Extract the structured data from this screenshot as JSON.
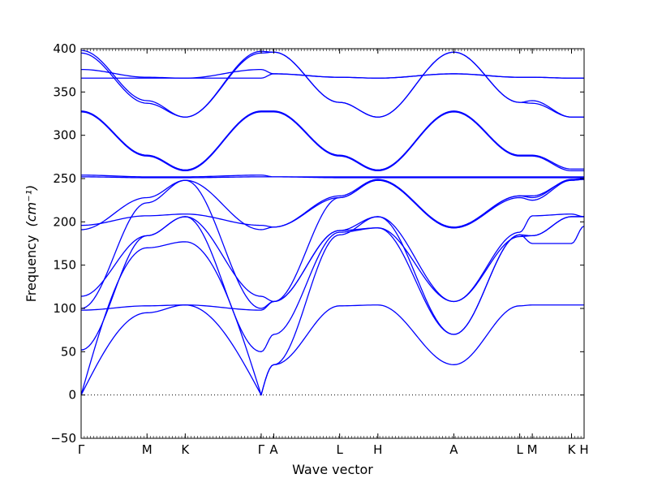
{
  "chart_data": {
    "type": "line",
    "title": "",
    "xlabel": "Wave vector",
    "ylabel": "Frequency",
    "ylabel_unit": "(cm⁻¹)",
    "ylim": [
      -50,
      400
    ],
    "yticks": [
      -50,
      0,
      50,
      100,
      150,
      200,
      250,
      300,
      350,
      400
    ],
    "xlim": [
      0,
      100
    ],
    "high_symmetry_points": [
      {
        "label": "Γ",
        "x": 0
      },
      {
        "label": "M",
        "x": 13.1
      },
      {
        "label": "K",
        "x": 20.7
      },
      {
        "label": "Γ",
        "x": 35.8
      },
      {
        "label": "A",
        "x": 38.3
      },
      {
        "label": "L",
        "x": 51.4
      },
      {
        "label": "H",
        "x": 59.0
      },
      {
        "label": "A",
        "x": 74.1
      },
      {
        "label": "L",
        "x": 87.2
      },
      {
        "label": "M",
        "x": 89.7
      },
      {
        "label": "K",
        "x": 97.5
      },
      {
        "label": "H",
        "x": 100
      }
    ],
    "zero_line": {
      "y": 0,
      "style": "dotted"
    },
    "line_color": "#0000ff",
    "series": [
      {
        "points": [
          [
            0,
            0
          ],
          [
            13.1,
            95
          ],
          [
            20.7,
            104
          ],
          [
            35.8,
            0
          ],
          [
            38.3,
            35
          ],
          [
            51.4,
            103
          ],
          [
            59,
            104
          ],
          [
            74.1,
            35
          ],
          [
            87.2,
            103
          ],
          [
            89.7,
            104
          ],
          [
            97.5,
            104
          ],
          [
            100,
            104
          ]
        ]
      },
      {
        "points": [
          [
            0,
            0
          ],
          [
            13.1,
            170
          ],
          [
            20.7,
            177
          ],
          [
            35.8,
            0
          ],
          [
            38.3,
            35
          ],
          [
            51.4,
            185
          ],
          [
            59,
            206
          ],
          [
            74.1,
            70
          ],
          [
            87.2,
            185
          ],
          [
            89.7,
            175
          ],
          [
            97.5,
            175
          ],
          [
            100,
            195
          ]
        ]
      },
      {
        "points": [
          [
            0,
            52
          ],
          [
            13.1,
            184
          ],
          [
            20.7,
            206
          ],
          [
            35.8,
            50
          ],
          [
            38.3,
            70
          ],
          [
            51.4,
            188
          ],
          [
            59,
            193
          ],
          [
            74.1,
            108
          ],
          [
            87.2,
            183
          ],
          [
            89.7,
            184
          ],
          [
            97.5,
            206
          ],
          [
            100,
            206
          ]
        ]
      },
      {
        "points": [
          [
            0,
            98
          ],
          [
            13.1,
            103
          ],
          [
            20.7,
            104
          ],
          [
            35.8,
            98
          ],
          [
            38.3,
            108
          ],
          [
            51.4,
            190
          ],
          [
            59,
            206
          ],
          [
            74.1,
            108
          ],
          [
            87.2,
            188
          ],
          [
            89.7,
            207
          ],
          [
            97.5,
            209
          ],
          [
            100,
            206
          ]
        ]
      },
      {
        "points": [
          [
            0,
            100
          ],
          [
            13.1,
            222
          ],
          [
            20.7,
            248
          ],
          [
            35.8,
            100
          ],
          [
            38.3,
            108
          ],
          [
            51.4,
            190
          ],
          [
            59,
            193
          ],
          [
            74.1,
            70
          ],
          [
            87.2,
            185
          ],
          [
            89.7,
            184
          ],
          [
            97.5,
            206
          ],
          [
            100,
            206
          ]
        ]
      },
      {
        "points": [
          [
            0,
            114
          ],
          [
            13.1,
            184
          ],
          [
            20.7,
            206
          ],
          [
            35.8,
            114
          ],
          [
            38.3,
            108
          ],
          [
            51.4,
            228
          ],
          [
            59,
            248
          ],
          [
            74.1,
            193
          ],
          [
            87.2,
            230
          ],
          [
            89.7,
            230
          ],
          [
            97.5,
            248
          ],
          [
            100,
            249
          ]
        ]
      },
      {
        "points": [
          [
            0,
            191
          ],
          [
            13.1,
            228
          ],
          [
            20.7,
            248
          ],
          [
            35.8,
            191
          ],
          [
            38.3,
            194
          ],
          [
            51.4,
            228
          ],
          [
            59,
            248
          ],
          [
            74.1,
            193
          ],
          [
            87.2,
            228
          ],
          [
            89.7,
            225
          ],
          [
            97.5,
            248
          ],
          [
            100,
            249
          ]
        ]
      },
      {
        "points": [
          [
            0,
            196
          ],
          [
            13.1,
            207
          ],
          [
            20.7,
            209
          ],
          [
            35.8,
            196
          ],
          [
            38.3,
            194
          ],
          [
            51.4,
            230
          ],
          [
            59,
            249
          ],
          [
            74.1,
            194
          ],
          [
            87.2,
            230
          ],
          [
            89.7,
            228
          ],
          [
            97.5,
            249
          ],
          [
            100,
            250
          ]
        ]
      },
      {
        "points": [
          [
            0,
            252
          ],
          [
            13.1,
            251
          ],
          [
            20.7,
            251
          ],
          [
            35.8,
            252
          ],
          [
            38.3,
            252
          ],
          [
            51.4,
            251
          ],
          [
            59,
            251
          ],
          [
            74.1,
            251
          ],
          [
            87.2,
            251
          ],
          [
            89.7,
            251
          ],
          [
            97.5,
            251
          ],
          [
            100,
            251
          ]
        ]
      },
      {
        "points": [
          [
            0,
            254
          ],
          [
            13.1,
            252
          ],
          [
            20.7,
            252
          ],
          [
            35.8,
            254
          ],
          [
            38.3,
            252
          ],
          [
            51.4,
            252
          ],
          [
            59,
            252
          ],
          [
            74.1,
            252
          ],
          [
            87.2,
            252
          ],
          [
            89.7,
            252
          ],
          [
            97.5,
            252
          ],
          [
            100,
            252
          ]
        ]
      },
      {
        "points": [
          [
            0,
            327
          ],
          [
            13.1,
            276
          ],
          [
            20.7,
            259
          ],
          [
            35.8,
            327
          ],
          [
            38.3,
            327
          ],
          [
            51.4,
            276
          ],
          [
            59,
            259
          ],
          [
            74.1,
            327
          ],
          [
            87.2,
            276
          ],
          [
            89.7,
            276
          ],
          [
            97.5,
            259
          ],
          [
            100,
            259
          ]
        ]
      },
      {
        "points": [
          [
            0,
            328
          ],
          [
            13.1,
            277
          ],
          [
            20.7,
            260
          ],
          [
            35.8,
            328
          ],
          [
            38.3,
            328
          ],
          [
            51.4,
            277
          ],
          [
            59,
            260
          ],
          [
            74.1,
            328
          ],
          [
            87.2,
            277
          ],
          [
            89.7,
            277
          ],
          [
            97.5,
            261
          ],
          [
            100,
            261
          ]
        ]
      },
      {
        "points": [
          [
            0,
            366
          ],
          [
            13.1,
            366
          ],
          [
            20.7,
            366
          ],
          [
            35.8,
            366
          ],
          [
            38.3,
            371
          ],
          [
            51.4,
            367
          ],
          [
            59,
            366
          ],
          [
            74.1,
            371
          ],
          [
            87.2,
            367
          ],
          [
            89.7,
            367
          ],
          [
            97.5,
            366
          ],
          [
            100,
            366
          ]
        ]
      },
      {
        "points": [
          [
            0,
            376
          ],
          [
            13.1,
            367
          ],
          [
            20.7,
            366
          ],
          [
            35.8,
            376
          ],
          [
            38.3,
            371
          ],
          [
            51.4,
            367
          ],
          [
            59,
            366
          ],
          [
            74.1,
            371
          ],
          [
            87.2,
            367
          ],
          [
            89.7,
            367
          ],
          [
            97.5,
            366
          ],
          [
            100,
            366
          ]
        ]
      },
      {
        "points": [
          [
            0,
            395
          ],
          [
            13.1,
            337
          ],
          [
            20.7,
            321
          ],
          [
            35.8,
            395
          ],
          [
            38.3,
            396
          ],
          [
            51.4,
            338
          ],
          [
            59,
            321
          ],
          [
            74.1,
            396
          ],
          [
            87.2,
            338
          ],
          [
            89.7,
            340
          ],
          [
            97.5,
            321
          ],
          [
            100,
            321
          ]
        ]
      },
      {
        "points": [
          [
            0,
            398
          ],
          [
            13.1,
            340
          ],
          [
            20.7,
            321
          ],
          [
            35.8,
            397
          ],
          [
            38.3,
            396
          ],
          [
            51.4,
            338
          ],
          [
            59,
            321
          ],
          [
            74.1,
            396
          ],
          [
            87.2,
            338
          ],
          [
            89.7,
            337
          ],
          [
            97.5,
            321
          ],
          [
            100,
            321
          ]
        ]
      }
    ]
  }
}
